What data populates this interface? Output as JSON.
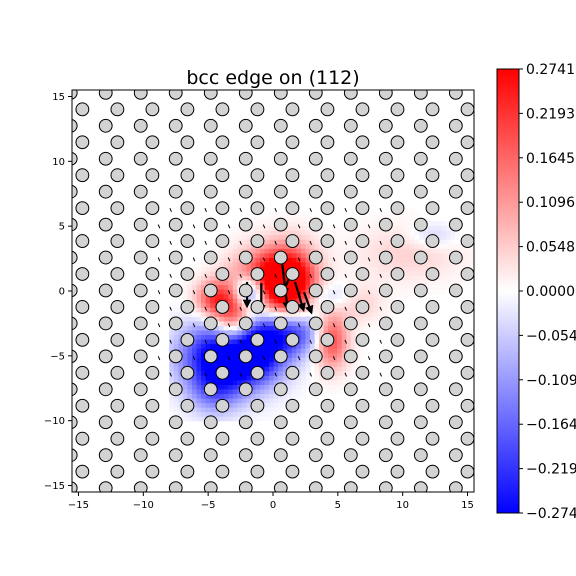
{
  "chart_data": {
    "type": "heatmap",
    "title": "bcc edge on (112)",
    "xlabel": "",
    "ylabel": "",
    "xlim": [
      -15.5,
      15.5
    ],
    "ylim": [
      -15.5,
      15.5
    ],
    "x_ticks": [
      -15,
      -10,
      -5,
      0,
      5,
      10,
      15
    ],
    "y_ticks": [
      -15,
      -10,
      -5,
      0,
      5,
      10,
      15
    ],
    "grid": false,
    "colormap": "bwr",
    "colorbar": {
      "min": -0.2741,
      "max": 0.2741,
      "ticks": [
        -0.2741,
        -0.2193,
        -0.1645,
        -0.1096,
        -0.0548,
        0.0,
        0.0548,
        0.1096,
        0.1645,
        0.2193,
        0.2741
      ],
      "tick_labels": [
        "−0.2741",
        "−0.2193",
        "−0.1645",
        "−0.1096",
        "−0.0548",
        "0.0000",
        "0.0548",
        "0.1096",
        "0.1645",
        "0.2193",
        "0.2741"
      ]
    },
    "atoms": {
      "lattice": {
        "row_spacing": 1.27,
        "col_spacing": 2.7,
        "row_shift": 0.9,
        "x0": -15.6,
        "y0": -15.2
      },
      "marker_color": "#d3d3d3",
      "edge_color": "#000000"
    },
    "field": [
      {
        "x": -0.2,
        "y": 0.9,
        "sx": 1.8,
        "sy": 1.6,
        "v": 0.28
      },
      {
        "x": 1.4,
        "y": 0.4,
        "sx": 1.4,
        "sy": 2.0,
        "v": 0.27
      },
      {
        "x": -3.0,
        "y": -2.2,
        "sx": 1.1,
        "sy": 1.8,
        "v": 0.26
      },
      {
        "x": -4.6,
        "y": -0.6,
        "sx": 1.0,
        "sy": 1.0,
        "v": 0.18
      },
      {
        "x": 4.5,
        "y": -3.7,
        "sx": 0.9,
        "sy": 1.5,
        "v": 0.22
      },
      {
        "x": 6.5,
        "y": -0.8,
        "sx": 1.3,
        "sy": 1.0,
        "v": 0.07
      },
      {
        "x": 10.5,
        "y": 3.0,
        "sx": 2.8,
        "sy": 1.5,
        "v": 0.05
      },
      {
        "x": -1.8,
        "y": 0.0,
        "sx": 0.9,
        "sy": 0.9,
        "v": -0.3
      },
      {
        "x": -4.0,
        "y": -5.0,
        "sx": 2.2,
        "sy": 1.8,
        "v": -0.3
      },
      {
        "x": -1.5,
        "y": -4.5,
        "sx": 1.8,
        "sy": 1.8,
        "v": -0.26
      },
      {
        "x": 1.5,
        "y": -3.0,
        "sx": 1.8,
        "sy": 1.3,
        "v": -0.22
      },
      {
        "x": -4.5,
        "y": -7.7,
        "sx": 1.4,
        "sy": 1.3,
        "v": -0.12
      },
      {
        "x": 4.2,
        "y": -0.4,
        "sx": 1.8,
        "sy": 0.8,
        "v": -0.08
      },
      {
        "x": 12.3,
        "y": 4.3,
        "sx": 1.3,
        "sy": 0.7,
        "v": -0.06
      }
    ],
    "arrows": [
      {
        "x": 0.7,
        "y": 2.2,
        "dx": 0.4,
        "dy": -3.4
      },
      {
        "x": 1.7,
        "y": 0.7,
        "dx": 0.6,
        "dy": -2.0
      },
      {
        "x": -0.9,
        "y": 0.6,
        "dx": 0.0,
        "dy": -2.0
      },
      {
        "x": -2.0,
        "y": 0.7,
        "dx": 0.0,
        "dy": -1.7
      },
      {
        "x": 2.4,
        "y": -0.1,
        "dx": 0.5,
        "dy": -1.4
      },
      {
        "x": 1.4,
        "y": 1.3,
        "dx": -0.6,
        "dy": -1.3
      }
    ]
  }
}
